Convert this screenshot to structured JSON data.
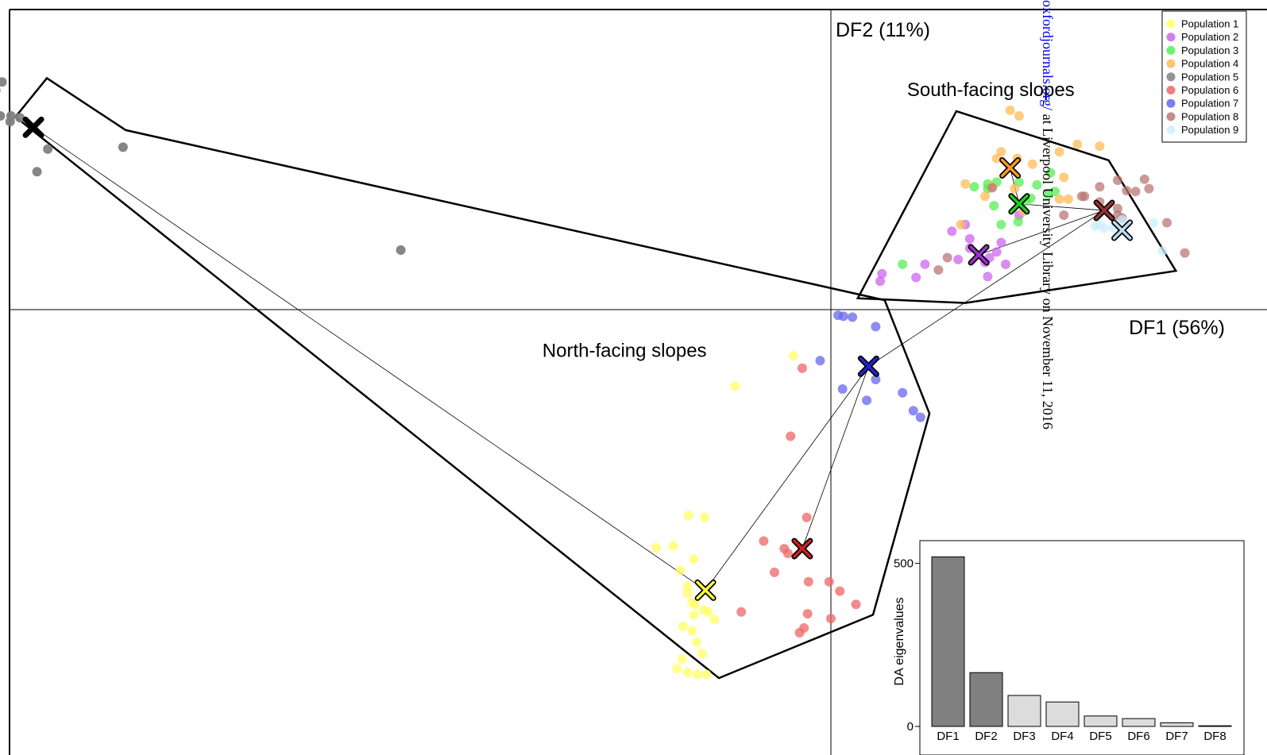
{
  "chart_data": [
    {
      "type": "scatter",
      "title": "",
      "xlabel": "DF1 (56%)",
      "ylabel": "DF2 (11%)",
      "xlim": [
        -10,
        5
      ],
      "ylim": [
        -4.6,
        3.6
      ],
      "grid": false,
      "legend_position": "top-right",
      "group_labels": [
        "South-facing slopes",
        "North-facing slopes"
      ],
      "series": [
        {
          "name": "Population 1",
          "color": "#ffff66",
          "points": [
            [
              -0.42,
              -0.49
            ],
            [
              -1.07,
              -0.81
            ],
            [
              -1.41,
              -2.2
            ],
            [
              -1.53,
              -2.64
            ],
            [
              -1.68,
              -2.76
            ],
            [
              -1.6,
              -2.93
            ],
            [
              -1.6,
              -3.0
            ],
            [
              -1.55,
              -3.1
            ],
            [
              -1.52,
              -3.12
            ],
            [
              -1.42,
              -3.18
            ],
            [
              -1.53,
              -3.23
            ],
            [
              -1.65,
              -3.35
            ],
            [
              -1.55,
              -3.4
            ],
            [
              -1.3,
              -3.28
            ],
            [
              -1.5,
              -3.52
            ],
            [
              -1.44,
              -3.64
            ],
            [
              -1.66,
              -3.7
            ],
            [
              -1.6,
              -3.84
            ],
            [
              -1.72,
              -3.8
            ],
            [
              -1.49,
              -3.86
            ],
            [
              -1.39,
              -3.86
            ],
            [
              -1.37,
              -3.2
            ],
            [
              -1.59,
              -2.18
            ],
            [
              -1.76,
              -2.5
            ],
            [
              -1.95,
              -2.52
            ]
          ],
          "centroid": [
            -1.4,
            -2.97
          ]
        },
        {
          "name": "Population 2",
          "color": "#cc66ee",
          "points": [
            [
              1.5,
              0.9
            ],
            [
              1.55,
              0.75
            ],
            [
              1.9,
              0.71
            ],
            [
              1.77,
              0.55
            ],
            [
              1.72,
              0.5
            ],
            [
              1.42,
              0.53
            ],
            [
              1.05,
              0.48
            ],
            [
              0.57,
              0.38
            ],
            [
              0.55,
              0.3
            ],
            [
              0.95,
              0.34
            ],
            [
              1.75,
              0.35
            ],
            [
              1.85,
              0.61
            ],
            [
              1.95,
              0.48
            ],
            [
              1.55,
              0.65
            ],
            [
              1.35,
              0.83
            ],
            [
              2.1,
              1.0
            ]
          ],
          "centroid": [
            1.65,
            0.58
          ]
        },
        {
          "name": "Population 3",
          "color": "#55ee55",
          "points": [
            [
              1.75,
              1.28
            ],
            [
              1.85,
              1.35
            ],
            [
              2.1,
              1.35
            ],
            [
              2.3,
              1.32
            ],
            [
              2.45,
              1.45
            ],
            [
              2.5,
              1.25
            ],
            [
              2.42,
              1.22
            ],
            [
              2.23,
              1.18
            ],
            [
              2.18,
              1.15
            ],
            [
              2.09,
              0.93
            ],
            [
              1.9,
              0.9
            ],
            [
              1.82,
              1.1
            ],
            [
              0.8,
              0.48
            ],
            [
              1.6,
              1.3
            ],
            [
              1.75,
              1.33
            ]
          ],
          "centroid": [
            2.1,
            1.12
          ]
        },
        {
          "name": "Population 4",
          "color": "#ffbb55",
          "points": [
            [
              2.0,
              2.11
            ],
            [
              2.1,
              2.05
            ],
            [
              1.9,
              1.67
            ],
            [
              2.08,
              1.6
            ],
            [
              2.25,
              1.54
            ],
            [
              2.55,
              1.67
            ],
            [
              2.6,
              1.4
            ],
            [
              2.75,
              1.75
            ],
            [
              3.0,
              1.73
            ],
            [
              1.85,
              1.6
            ],
            [
              1.8,
              1.3
            ],
            [
              1.72,
              1.2
            ],
            [
              1.5,
              1.33
            ],
            [
              2.05,
              1.28
            ],
            [
              2.15,
              1.04
            ],
            [
              1.45,
              0.9
            ],
            [
              2.55,
              1.17
            ],
            [
              2.65,
              1.17
            ]
          ],
          "centroid": [
            2.0,
            1.5
          ]
        },
        {
          "name": "Population 5",
          "color": "#808080",
          "points": [
            [
              -9.72,
              2.43
            ],
            [
              -9.42,
              2.42
            ],
            [
              -9.32,
              2.32
            ],
            [
              -9.25,
              2.41
            ],
            [
              -9.63,
              2.16
            ],
            [
              -9.27,
              2.05
            ],
            [
              -9.15,
              2.05
            ],
            [
              -9.05,
              2.03
            ],
            [
              -9.16,
              1.99
            ],
            [
              -9.53,
              1.91
            ],
            [
              -8.74,
              1.7
            ],
            [
              -7.9,
              1.72
            ],
            [
              -8.86,
              1.46
            ],
            [
              -4.8,
              0.63
            ]
          ],
          "centroid": [
            -8.9,
            1.93
          ]
        },
        {
          "name": "Population 6",
          "color": "#ee6666",
          "points": [
            [
              -0.32,
              -0.62
            ],
            [
              -0.45,
              -1.34
            ],
            [
              -0.27,
              -2.2
            ],
            [
              -0.75,
              -2.45
            ],
            [
              -0.52,
              -2.53
            ],
            [
              -0.48,
              -2.58
            ],
            [
              -0.63,
              -2.78
            ],
            [
              -0.25,
              -2.88
            ],
            [
              -0.02,
              -2.88
            ],
            [
              0.1,
              -2.98
            ],
            [
              0.28,
              -3.12
            ],
            [
              -0.26,
              -3.22
            ],
            [
              -1.0,
              -3.2
            ],
            [
              0.0,
              -3.27
            ],
            [
              -0.3,
              -3.37
            ],
            [
              -0.35,
              -3.42
            ]
          ],
          "centroid": [
            -0.32,
            -2.53
          ]
        },
        {
          "name": "Population 7",
          "color": "#6666ee",
          "points": [
            [
              0.08,
              -0.06
            ],
            [
              0.14,
              -0.07
            ],
            [
              0.24,
              -0.08
            ],
            [
              0.5,
              -0.18
            ],
            [
              -0.12,
              -0.54
            ],
            [
              0.5,
              -0.74
            ],
            [
              0.13,
              -0.84
            ],
            [
              0.4,
              -0.96
            ],
            [
              0.8,
              -0.88
            ],
            [
              0.92,
              -1.07
            ],
            [
              1.0,
              -1.14
            ]
          ],
          "centroid": [
            0.42,
            -0.6
          ]
        },
        {
          "name": "Population 8",
          "color": "#bb7777",
          "points": [
            [
              3.0,
              1.3
            ],
            [
              3.2,
              1.37
            ],
            [
              3.3,
              1.26
            ],
            [
              3.4,
              1.25
            ],
            [
              3.55,
              1.28
            ],
            [
              3.5,
              1.38
            ],
            [
              2.8,
              1.2
            ],
            [
              2.83,
              1.2
            ],
            [
              3.0,
              1.14
            ],
            [
              3.2,
              1.07
            ],
            [
              3.25,
              0.97
            ],
            [
              3.75,
              0.92
            ],
            [
              2.6,
              1.0
            ],
            [
              3.2,
              1.0
            ],
            [
              3.95,
              0.6
            ],
            [
              1.3,
              0.55
            ],
            [
              1.2,
              0.42
            ],
            [
              1.8,
              1.29
            ]
          ],
          "centroid": [
            3.05,
            1.05
          ]
        },
        {
          "name": "Population 9",
          "color": "#cceeff",
          "points": [
            [
              2.95,
              0.88
            ],
            [
              3.05,
              0.86
            ],
            [
              3.15,
              0.87
            ],
            [
              3.6,
              0.92
            ],
            [
              3.7,
              0.62
            ],
            [
              3.25,
              0.95
            ],
            [
              3.0,
              0.9
            ]
          ],
          "centroid": [
            3.25,
            0.84
          ]
        }
      ]
    },
    {
      "type": "bar",
      "title": "",
      "xlabel": "",
      "ylabel": "DA eigenvalues",
      "categories": [
        "DF1",
        "DF2",
        "DF3",
        "DF4",
        "DF5",
        "DF6",
        "DF7",
        "DF8"
      ],
      "values": [
        520,
        165,
        95,
        75,
        32,
        24,
        11,
        2
      ],
      "colors": [
        "#808080",
        "#808080",
        "#dcdcdc",
        "#dcdcdc",
        "#dcdcdc",
        "#dcdcdc",
        "#dcdcdc",
        "#dcdcdc"
      ],
      "yticks": [
        0,
        500
      ],
      "ylim": [
        0,
        560
      ]
    }
  ],
  "watermark": {
    "link_text": "oxfordjournals.org/",
    "rest_text": " at Liverpool University Library on November 11, 2016",
    "link_color": "#0000ee"
  }
}
